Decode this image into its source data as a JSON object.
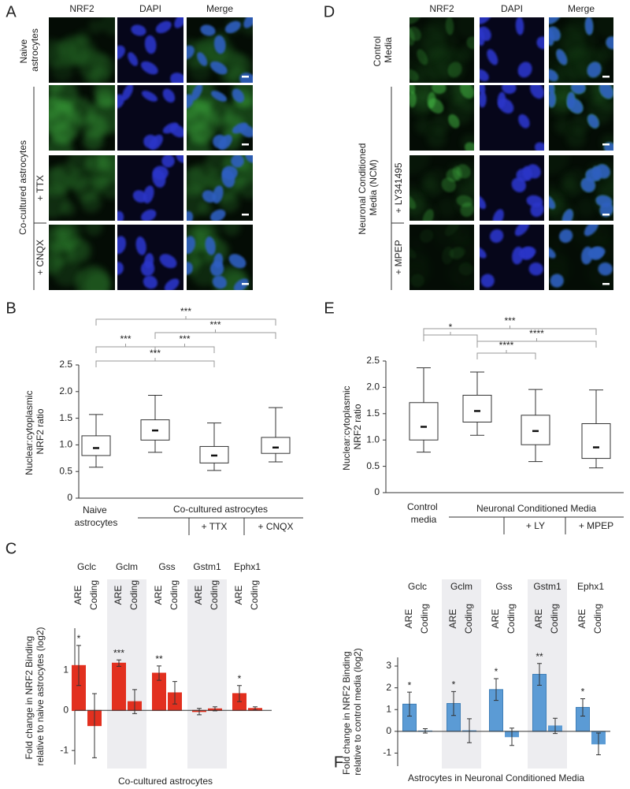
{
  "panel_letters": [
    "A",
    "B",
    "C",
    "D",
    "E",
    "F"
  ],
  "image_panels": [
    {
      "columns": [
        "NRF2",
        "DAPI",
        "Merge"
      ],
      "row_labels": [
        "Naive astrocytes",
        null,
        "+ TTX",
        "+ CNQX"
      ],
      "group_label": "Co-cultured astrocytes"
    },
    {
      "columns": [
        "NRF2",
        "DAPI",
        "Merge"
      ],
      "row_labels": [
        "Control Media",
        null,
        "+ LY341495",
        "+ MPEP"
      ],
      "group_label": "Neuronal Conditioned Media (NCM)"
    }
  ],
  "chart_data": [
    {
      "type": "box",
      "y_label": "Nuclear:cytoplasmic NRF2 ratio",
      "categories": [
        "Naive astrocytes",
        null,
        "+ TTX",
        "+ CNQX"
      ],
      "group_label": "Co-cultured astrocytes",
      "whisker_low": [
        0.58,
        0.86,
        0.52,
        0.68
      ],
      "q1": [
        0.8,
        1.09,
        0.66,
        0.84
      ],
      "median": [
        0.94,
        1.27,
        0.8,
        0.95
      ],
      "q3": [
        1.17,
        1.47,
        0.97,
        1.14
      ],
      "whisker_high": [
        1.57,
        1.93,
        1.41,
        1.7
      ],
      "ylim": [
        0,
        2.5
      ],
      "yticks": [
        0,
        0.5,
        {
          "value": 1,
          "label": "1.0"
        },
        1.5,
        {
          "value": 2,
          "label": "2.0"
        },
        2.5
      ],
      "significance": [
        "***",
        "***",
        "***",
        "***",
        "***"
      ]
    },
    {
      "type": "bar",
      "y_label": "Fold change in NRF2 Binding relative to naive astrocytes (log2)",
      "x_label": "Co-cultured astrocytes",
      "categories": [
        "Gclc",
        "Gclm",
        "Gss",
        "Gstm1",
        "Ephx1"
      ],
      "series": [
        {
          "name": "ARE",
          "color": "#e2301f",
          "values": [
            1.12,
            1.18,
            0.93,
            -0.03,
            0.42
          ],
          "errors": [
            0.5,
            0.08,
            0.18,
            0.08,
            0.2
          ],
          "significance": [
            "*",
            "***",
            "**",
            null,
            "*"
          ]
        },
        {
          "name": "Coding",
          "color": "#e2301f",
          "values": [
            -0.38,
            0.22,
            0.44,
            0.04,
            0.05
          ],
          "errors": [
            0.8,
            0.3,
            0.28,
            0.05,
            0.04
          ],
          "significance": [
            null,
            null,
            null,
            null,
            null
          ]
        }
      ],
      "ylim": [
        -1.35,
        2.05
      ],
      "yticks": [
        -1,
        0,
        1
      ]
    },
    {
      "type": "box",
      "y_label": "Nuclear:cytoplasmic NRF2 ratio",
      "categories": [
        "Control media",
        null,
        "+ LY",
        "+ MPEP"
      ],
      "group_label": "Neuronal Conditioned Media",
      "whisker_low": [
        0.77,
        1.09,
        0.59,
        0.47
      ],
      "q1": [
        1.0,
        1.34,
        0.91,
        0.65
      ],
      "median": [
        1.25,
        1.55,
        1.17,
        0.86
      ],
      "q3": [
        1.71,
        1.85,
        1.47,
        1.31
      ],
      "whisker_high": [
        2.37,
        2.29,
        1.96,
        1.95
      ],
      "ylim": [
        0,
        2.5
      ],
      "yticks": [
        0,
        0.5,
        {
          "value": 1,
          "label": "1.0"
        },
        1.5,
        {
          "value": 2,
          "label": "2.0"
        },
        2.5
      ],
      "significance": [
        "***",
        "*",
        "****",
        "****"
      ]
    },
    {
      "type": "bar",
      "y_label": "Fold change in NRF2 Binding relative to control media (log2)",
      "x_label": "Astrocytes in Neuronal Conditioned Media",
      "categories": [
        "Gclc",
        "Gclm",
        "Gss",
        "Gstm1",
        "Ephx1"
      ],
      "series": [
        {
          "name": "ARE",
          "color": "#5b9bd5",
          "values": [
            1.25,
            1.28,
            1.92,
            2.62,
            1.1
          ],
          "errors": [
            0.55,
            0.55,
            0.5,
            0.5,
            0.4
          ],
          "significance": [
            "*",
            "*",
            "*",
            "**",
            "*"
          ]
        },
        {
          "name": "Coding",
          "color": "#5b9bd5",
          "values": [
            0.02,
            0.03,
            -0.25,
            0.25,
            -0.58
          ],
          "errors": [
            0.1,
            0.55,
            0.4,
            0.35,
            0.5
          ],
          "significance": [
            null,
            null,
            null,
            null,
            null
          ]
        }
      ],
      "ylim": [
        -1.6,
        3.4
      ],
      "yticks": [
        -1,
        0,
        1,
        2,
        3
      ]
    }
  ]
}
